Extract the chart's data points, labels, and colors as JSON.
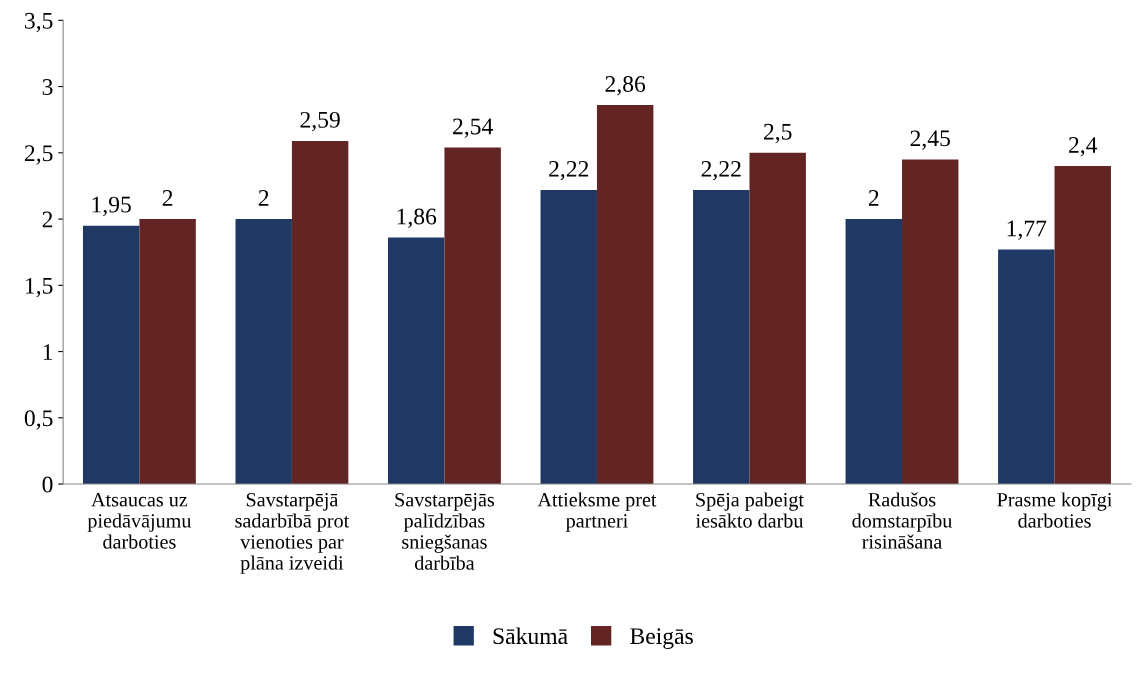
{
  "chart_data": {
    "type": "bar",
    "categories": [
      "Atsaucas uz\npiedāvājumu\ndarboties",
      "Savstarpējā\nsadarbībā prot\nvienoties par\nplāna izveidi",
      "Savstarpējās\npalīdzības\nsniegšanas\ndarbība",
      "Attieksme pret\npartneri",
      "Spēja pabeigt\niesākto darbu",
      "Radušos\ndomstarpību\nrisināšana",
      "Prasme kopīgi\ndarboties"
    ],
    "series": [
      {
        "name": "Sākumā",
        "color": "#1f3864",
        "values": [
          1.95,
          2,
          1.86,
          2.22,
          2.22,
          2,
          1.77
        ],
        "value_labels": [
          "1,95",
          "2",
          "1,86",
          "2,22",
          "2,22",
          "2",
          "1,77"
        ]
      },
      {
        "name": "Beigās",
        "color": "#632523",
        "values": [
          2,
          2.59,
          2.54,
          2.86,
          2.5,
          2.45,
          2.4
        ],
        "value_labels": [
          "2",
          "2,59",
          "2,54",
          "2,86",
          "2,5",
          "2,45",
          "2,4"
        ]
      }
    ],
    "ylim": [
      0,
      3.5
    ],
    "yticks": [
      0,
      {
        "value": 0.5,
        "label": "0,5"
      },
      1,
      {
        "value": 1.5,
        "label": "1,5"
      },
      2,
      {
        "value": 2.5,
        "label": "2,5"
      },
      3,
      {
        "value": 3.5,
        "label": "3,5"
      }
    ],
    "grid": false,
    "legend": "bottom"
  }
}
